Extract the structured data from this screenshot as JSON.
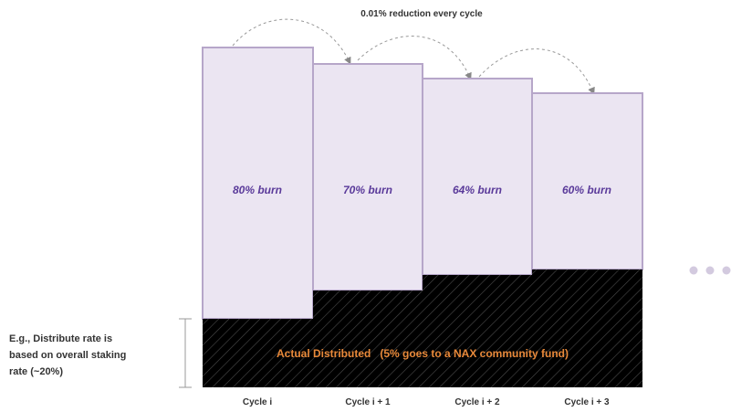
{
  "title": "0.01% reduction every cycle",
  "cycles": [
    {
      "label": "Cycle i",
      "burn_label": "80% burn"
    },
    {
      "label": "Cycle i + 1",
      "burn_label": "70% burn"
    },
    {
      "label": "Cycle i + 2",
      "burn_label": "64% burn"
    },
    {
      "label": "Cycle i + 3",
      "burn_label": "60% burn"
    }
  ],
  "distributed_label": "Actual Distributed   (5% goes to a NAX community fund)",
  "note_lines": [
    "E.g., Distribute rate is",
    "based on overall staking",
    "rate (~20%)"
  ],
  "colors": {
    "burn_fill": "#ebe5f2",
    "burn_stroke": "#b6a6c9",
    "distributed_fill": "#000000",
    "burn_text": "#5a3a9a",
    "distributed_text": "#e8893a",
    "continuation_dots": "#d3cadf"
  },
  "continuation_icon": "ellipsis-icon"
}
